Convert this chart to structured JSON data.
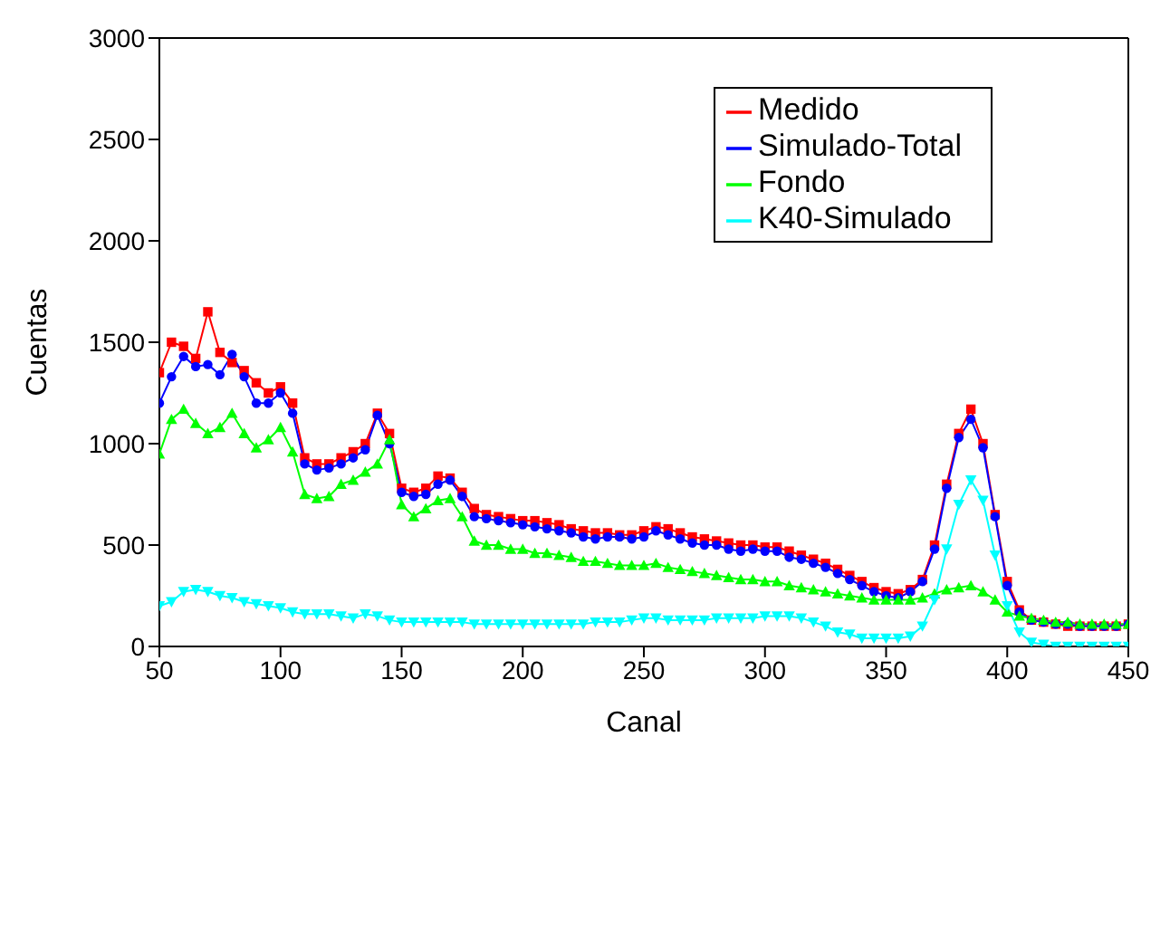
{
  "chart_data": {
    "type": "line",
    "xlabel": "Canal",
    "ylabel": "Cuentas",
    "x": [
      50,
      55,
      60,
      65,
      70,
      75,
      80,
      85,
      90,
      95,
      100,
      105,
      110,
      115,
      120,
      125,
      130,
      135,
      140,
      145,
      150,
      155,
      160,
      165,
      170,
      175,
      180,
      185,
      190,
      195,
      200,
      205,
      210,
      215,
      220,
      225,
      230,
      235,
      240,
      245,
      250,
      255,
      260,
      265,
      270,
      275,
      280,
      285,
      290,
      295,
      300,
      305,
      310,
      315,
      320,
      325,
      330,
      335,
      340,
      345,
      350,
      355,
      360,
      365,
      370,
      375,
      380,
      385,
      390,
      395,
      400,
      405,
      410,
      415,
      420,
      425,
      430,
      435,
      440,
      445,
      450
    ],
    "xlim": [
      50,
      450
    ],
    "xticks": [
      50,
      100,
      150,
      200,
      250,
      300,
      350,
      400,
      450
    ],
    "ylim": [
      0,
      3000
    ],
    "yticks": [
      0,
      500,
      1000,
      1500,
      2000,
      2500,
      3000
    ],
    "grid": false,
    "legend": "top right",
    "series": [
      {
        "name": "Medido",
        "color": "#ff0000",
        "marker": "square",
        "values": [
          1350,
          1500,
          1480,
          1420,
          1650,
          1450,
          1400,
          1360,
          1300,
          1250,
          1280,
          1200,
          930,
          900,
          900,
          930,
          960,
          1000,
          1150,
          1050,
          780,
          760,
          780,
          840,
          830,
          760,
          680,
          650,
          640,
          630,
          620,
          620,
          610,
          600,
          580,
          570,
          560,
          560,
          550,
          550,
          570,
          590,
          580,
          560,
          540,
          530,
          520,
          510,
          500,
          500,
          490,
          490,
          470,
          450,
          430,
          410,
          380,
          350,
          320,
          290,
          270,
          260,
          280,
          330,
          500,
          800,
          1050,
          1170,
          1000,
          650,
          320,
          180,
          130,
          120,
          110,
          100,
          100,
          100,
          100,
          100,
          110
        ]
      },
      {
        "name": "Simulado-Total",
        "color": "#0000ff",
        "marker": "circle",
        "values": [
          1200,
          1330,
          1430,
          1380,
          1390,
          1340,
          1440,
          1330,
          1200,
          1200,
          1250,
          1150,
          900,
          870,
          880,
          900,
          930,
          970,
          1140,
          1000,
          760,
          740,
          750,
          800,
          820,
          740,
          640,
          630,
          620,
          610,
          600,
          590,
          580,
          570,
          560,
          540,
          530,
          540,
          540,
          530,
          540,
          570,
          550,
          530,
          510,
          500,
          500,
          480,
          470,
          480,
          470,
          470,
          440,
          430,
          410,
          390,
          360,
          330,
          300,
          270,
          250,
          240,
          270,
          320,
          480,
          780,
          1030,
          1120,
          980,
          640,
          300,
          170,
          130,
          120,
          110,
          110,
          100,
          100,
          100,
          100,
          110
        ]
      },
      {
        "name": "Fondo",
        "color": "#00ff00",
        "marker": "triangle",
        "values": [
          950,
          1120,
          1170,
          1100,
          1050,
          1080,
          1150,
          1050,
          980,
          1020,
          1080,
          960,
          750,
          730,
          740,
          800,
          820,
          860,
          900,
          1020,
          700,
          640,
          680,
          720,
          730,
          640,
          520,
          500,
          500,
          480,
          480,
          460,
          460,
          450,
          440,
          420,
          420,
          410,
          400,
          400,
          400,
          410,
          390,
          380,
          370,
          360,
          350,
          340,
          330,
          330,
          320,
          320,
          300,
          290,
          280,
          270,
          260,
          250,
          240,
          230,
          230,
          230,
          230,
          240,
          260,
          280,
          290,
          300,
          270,
          230,
          170,
          150,
          140,
          130,
          120,
          120,
          110,
          110,
          110,
          110,
          110
        ]
      },
      {
        "name": "K40-Simulado",
        "color": "#00ffff",
        "marker": "triangle-down",
        "values": [
          200,
          220,
          270,
          280,
          270,
          250,
          240,
          220,
          210,
          200,
          190,
          170,
          160,
          160,
          160,
          150,
          140,
          160,
          150,
          130,
          120,
          120,
          120,
          120,
          120,
          120,
          110,
          110,
          110,
          110,
          110,
          110,
          110,
          110,
          110,
          110,
          120,
          120,
          120,
          130,
          140,
          140,
          130,
          130,
          130,
          130,
          140,
          140,
          140,
          140,
          150,
          150,
          150,
          140,
          120,
          100,
          70,
          60,
          40,
          40,
          40,
          40,
          50,
          100,
          230,
          480,
          700,
          820,
          720,
          450,
          200,
          70,
          20,
          10,
          0,
          0,
          0,
          0,
          0,
          0,
          0
        ]
      }
    ]
  }
}
